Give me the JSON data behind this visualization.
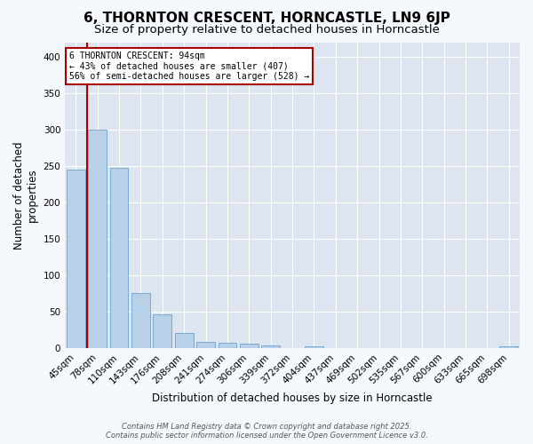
{
  "title_line1": "6, THORNTON CRESCENT, HORNCASTLE, LN9 6JP",
  "title_line2": "Size of property relative to detached houses in Horncastle",
  "xlabel": "Distribution of detached houses by size in Horncastle",
  "ylabel": "Number of detached\nproperties",
  "categories": [
    "45sqm",
    "78sqm",
    "110sqm",
    "143sqm",
    "176sqm",
    "208sqm",
    "241sqm",
    "274sqm",
    "306sqm",
    "339sqm",
    "372sqm",
    "404sqm",
    "437sqm",
    "469sqm",
    "502sqm",
    "535sqm",
    "567sqm",
    "600sqm",
    "633sqm",
    "665sqm",
    "698sqm"
  ],
  "values": [
    245,
    300,
    248,
    76,
    46,
    21,
    9,
    7,
    6,
    4,
    0,
    2,
    0,
    0,
    0,
    0,
    0,
    0,
    0,
    0,
    2
  ],
  "bar_color": "#b8d0e8",
  "bar_edge_color": "#7aaad0",
  "vline_x": 0.5,
  "vline_color": "#aa0000",
  "annotation_text": "6 THORNTON CRESCENT: 94sqm\n← 43% of detached houses are smaller (407)\n56% of semi-detached houses are larger (528) →",
  "annotation_box_color": "#ffffff",
  "annotation_box_edge_color": "#aa0000",
  "ylim": [
    0,
    420
  ],
  "yticks": [
    0,
    50,
    100,
    150,
    200,
    250,
    300,
    350,
    400
  ],
  "fig_background": "#f5f8fc",
  "plot_background": "#dde6f0",
  "grid_color": "#ffffff",
  "title1_fontsize": 11,
  "title2_fontsize": 9.5,
  "xlabel_fontsize": 8.5,
  "ylabel_fontsize": 8.5,
  "tick_fontsize": 7.5,
  "footer_line1": "Contains HM Land Registry data © Crown copyright and database right 2025.",
  "footer_line2": "Contains public sector information licensed under the Open Government Licence v3.0."
}
